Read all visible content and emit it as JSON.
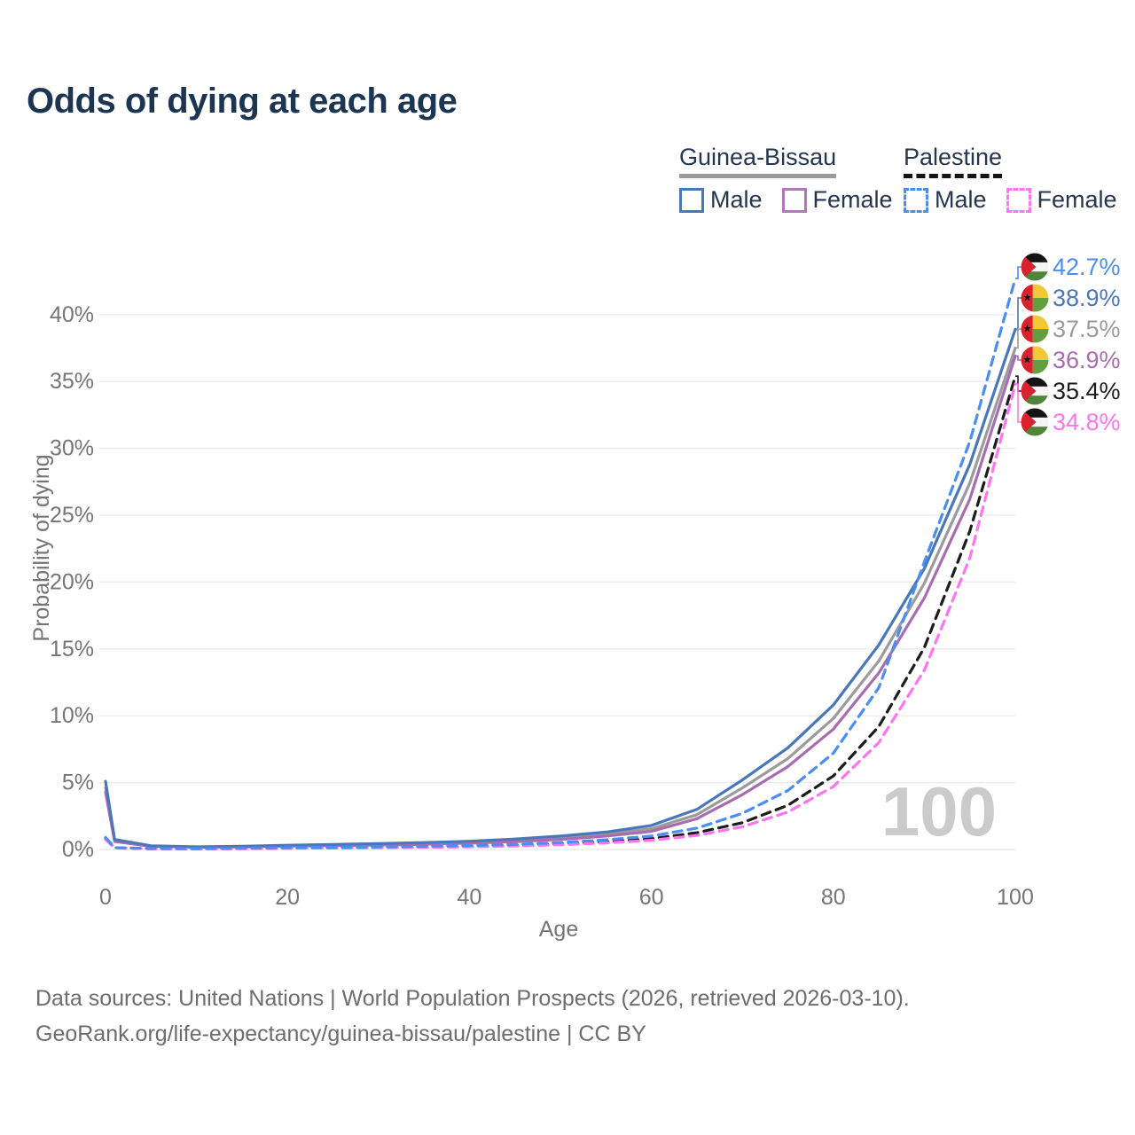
{
  "title": "Odds of dying at each age",
  "legend": {
    "groups": [
      {
        "country": "Guinea-Bissau",
        "line_style": "solid",
        "underline_color": "#9a9a9a",
        "items": [
          {
            "label": "Male",
            "color": "#4a76ba",
            "dashed": false
          },
          {
            "label": "Female",
            "color": "#b277b6",
            "dashed": false
          }
        ]
      },
      {
        "country": "Palestine",
        "line_style": "dashed",
        "underline_color": "#151515",
        "items": [
          {
            "label": "Male",
            "color": "#4a8ef5",
            "dashed": true
          },
          {
            "label": "Female",
            "color": "#ff77f0",
            "dashed": true
          }
        ]
      }
    ]
  },
  "chart_data": {
    "type": "line",
    "title": "Odds of dying at each age",
    "xlabel": "Age",
    "ylabel": "Probability of dying",
    "xlim": [
      0,
      100
    ],
    "ylim": [
      0,
      45
    ],
    "xticks": [
      0,
      20,
      40,
      60,
      80,
      100
    ],
    "yticks_percent": [
      0,
      5,
      10,
      15,
      20,
      25,
      30,
      35,
      40
    ],
    "ytick_suffix": "%",
    "grid": true,
    "legend_position": "top-right",
    "watermark": "100",
    "ages": [
      0,
      1,
      5,
      10,
      15,
      20,
      25,
      30,
      35,
      40,
      45,
      50,
      55,
      60,
      65,
      70,
      75,
      80,
      85,
      90,
      95,
      100
    ],
    "series": [
      {
        "name": "Guinea-Bissau (both sexes)",
        "country": "Guinea-Bissau",
        "flag": "guinea-bissau",
        "color": "#9b9b9b",
        "dashed": false,
        "end_label": "37.5%",
        "end_value": 37.5,
        "values": [
          4.6,
          0.68,
          0.26,
          0.18,
          0.21,
          0.28,
          0.33,
          0.38,
          0.45,
          0.54,
          0.68,
          0.88,
          1.15,
          1.55,
          2.6,
          4.6,
          6.8,
          9.8,
          14.1,
          19.9,
          27.4,
          37.5
        ]
      },
      {
        "name": "Guinea-Bissau Female",
        "country": "Guinea-Bissau",
        "flag": "guinea-bissau",
        "color": "#a96cb0",
        "dashed": false,
        "end_label": "36.9%",
        "end_value": 36.9,
        "values": [
          4.3,
          0.6,
          0.24,
          0.17,
          0.19,
          0.25,
          0.29,
          0.33,
          0.39,
          0.47,
          0.58,
          0.75,
          1.0,
          1.35,
          2.3,
          4.1,
          6.2,
          9.0,
          13.2,
          18.8,
          26.2,
          36.9
        ]
      },
      {
        "name": "Guinea-Bissau Male",
        "country": "Guinea-Bissau",
        "flag": "guinea-bissau",
        "color": "#4a76ba",
        "dashed": false,
        "end_label": "38.9%",
        "end_value": 38.9,
        "values": [
          5.1,
          0.75,
          0.28,
          0.2,
          0.24,
          0.32,
          0.38,
          0.44,
          0.52,
          0.62,
          0.78,
          1.0,
          1.3,
          1.8,
          3.0,
          5.2,
          7.6,
          10.8,
          15.3,
          21.0,
          28.8,
          38.9
        ]
      },
      {
        "name": "Palestine (both sexes)",
        "country": "Palestine",
        "flag": "palestine",
        "color": "#1c1c1c",
        "dashed": true,
        "end_label": "35.4%",
        "end_value": 35.4,
        "values": [
          0.8,
          0.12,
          0.06,
          0.05,
          0.07,
          0.1,
          0.12,
          0.14,
          0.18,
          0.23,
          0.3,
          0.41,
          0.57,
          0.8,
          1.25,
          2.0,
          3.3,
          5.5,
          9.2,
          15.1,
          23.8,
          35.4
        ]
      },
      {
        "name": "Palestine Female",
        "country": "Palestine",
        "flag": "palestine",
        "color": "#ff74ef",
        "dashed": true,
        "end_label": "34.8%",
        "end_value": 34.8,
        "values": [
          0.75,
          0.11,
          0.05,
          0.045,
          0.06,
          0.09,
          0.11,
          0.13,
          0.16,
          0.2,
          0.26,
          0.35,
          0.49,
          0.69,
          1.05,
          1.7,
          2.8,
          4.7,
          8.0,
          13.4,
          21.8,
          34.8
        ]
      },
      {
        "name": "Palestine Male",
        "country": "Palestine",
        "flag": "palestine",
        "color": "#4a8ef5",
        "dashed": true,
        "end_label": "42.7%",
        "end_value": 42.7,
        "values": [
          0.9,
          0.14,
          0.07,
          0.06,
          0.09,
          0.13,
          0.16,
          0.19,
          0.23,
          0.29,
          0.38,
          0.52,
          0.72,
          1.0,
          1.6,
          2.7,
          4.4,
          7.2,
          12.1,
          21.5,
          30.5,
          42.7
        ]
      }
    ]
  },
  "footer": {
    "line1": "Data sources: United Nations | World Population Prospects (2026, retrieved 2026-03-10).",
    "line2": "GeoRank.org/life-expectancy/guinea-bissau/palestine | CC BY"
  }
}
